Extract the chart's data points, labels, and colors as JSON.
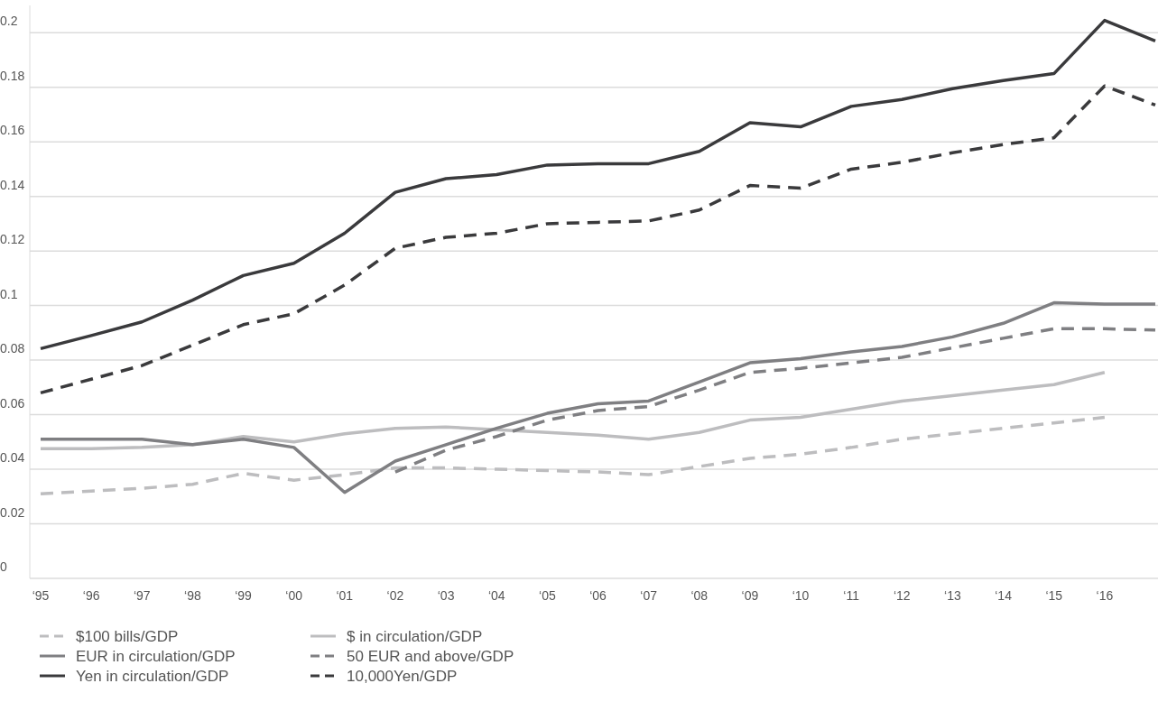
{
  "chart_data": {
    "type": "line",
    "categories": [
      "‘95",
      "‘96",
      "‘97",
      "‘98",
      "‘99",
      "‘00",
      "‘01",
      "‘02",
      "‘03",
      "‘04",
      "‘05",
      "‘06",
      "‘07",
      "‘08",
      "‘09",
      "‘10",
      "‘11",
      "‘12",
      "‘13",
      "‘14",
      "‘15",
      "‘16",
      null
    ],
    "ylim": [
      0,
      0.21
    ],
    "yticks": [
      0,
      0.02,
      0.04,
      0.06,
      0.08,
      0.1,
      0.12,
      0.14,
      0.16,
      0.18,
      0.2
    ],
    "grid": "y",
    "legend": "bottom left",
    "marker": "none",
    "series": [
      {
        "name": "$100 bills/GDP",
        "color": "#bdbdbf",
        "line_style": "dashed",
        "values": [
          0.031,
          0.032,
          0.033,
          0.0345,
          0.0385,
          0.036,
          0.038,
          0.0405,
          0.0405,
          0.04,
          0.0395,
          0.039,
          0.038,
          0.041,
          0.044,
          0.0455,
          0.048,
          0.051,
          0.053,
          0.055,
          0.057,
          0.059,
          null
        ]
      },
      {
        "name": "$ in circulation/GDP",
        "color": "#bdbdbf",
        "line_style": "solid",
        "values": [
          0.0475,
          0.0475,
          0.048,
          0.049,
          0.052,
          0.05,
          0.053,
          0.055,
          0.0555,
          0.0545,
          0.0535,
          0.0525,
          0.051,
          0.0535,
          0.058,
          0.059,
          0.062,
          0.065,
          0.067,
          0.069,
          0.071,
          0.0755,
          null
        ]
      },
      {
        "name": "EUR in circulation/GDP",
        "color": "#7f7f82",
        "line_style": "solid",
        "values": [
          0.051,
          0.051,
          0.051,
          0.049,
          0.051,
          0.048,
          0.0315,
          0.043,
          0.049,
          0.055,
          0.0605,
          0.064,
          0.065,
          0.072,
          0.079,
          0.0805,
          0.083,
          0.085,
          0.0885,
          0.0935,
          0.101,
          0.1005,
          0.1005
        ]
      },
      {
        "name": "50 EUR and above/GDP",
        "color": "#7f7f82",
        "line_style": "dashed",
        "values": [
          null,
          null,
          null,
          null,
          null,
          null,
          null,
          0.039,
          0.047,
          0.052,
          0.058,
          0.0615,
          0.063,
          0.069,
          0.0755,
          0.077,
          0.079,
          0.081,
          0.0845,
          0.088,
          0.0915,
          0.0915,
          0.091
        ]
      },
      {
        "name": "Yen in circulation/GDP",
        "color": "#3a3a3c",
        "line_style": "solid",
        "values": [
          0.0842,
          0.089,
          0.094,
          0.102,
          0.111,
          0.1155,
          0.1265,
          0.1415,
          0.1465,
          0.148,
          0.1515,
          0.152,
          0.152,
          0.1565,
          0.167,
          0.1655,
          0.173,
          0.1755,
          0.1795,
          0.1825,
          0.185,
          0.2045,
          0.197
        ]
      },
      {
        "name": "10,000Yen/GDP",
        "color": "#3a3a3c",
        "line_style": "dashed",
        "values": [
          0.068,
          0.073,
          0.078,
          0.0855,
          0.093,
          0.097,
          0.1075,
          0.121,
          0.125,
          0.1265,
          0.13,
          0.1305,
          0.131,
          0.135,
          0.144,
          0.143,
          0.15,
          0.1525,
          0.156,
          0.159,
          0.1615,
          0.1805,
          0.1735
        ]
      }
    ]
  }
}
